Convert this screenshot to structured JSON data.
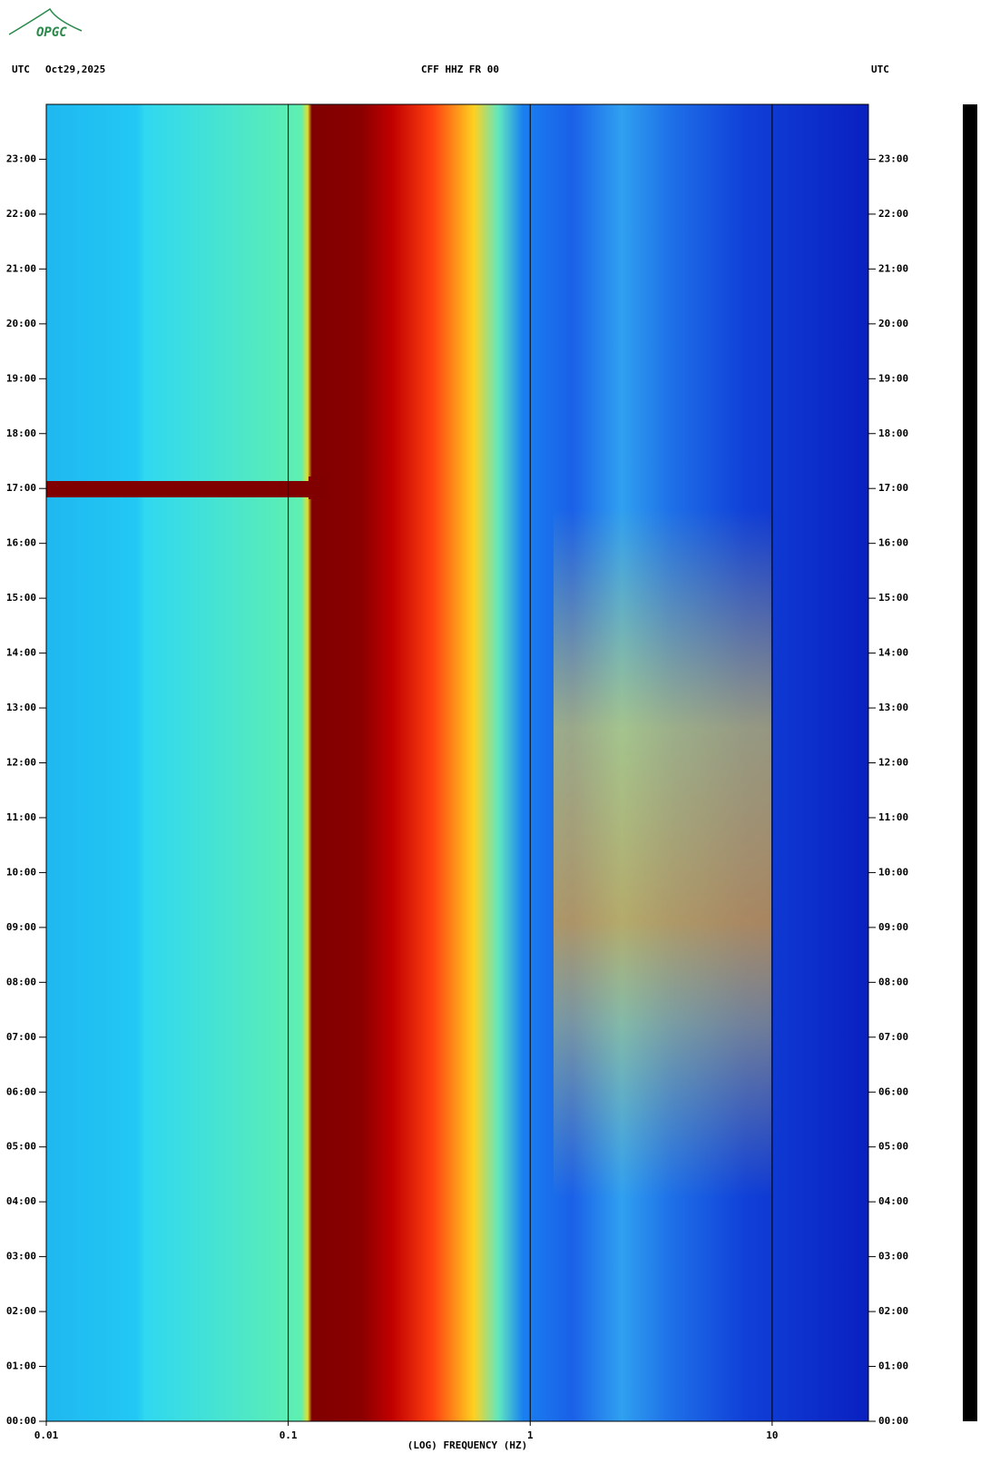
{
  "logo": "OPGC",
  "chart_data": {
    "type": "spectrogram",
    "left_label": "UTC",
    "date": "Oct29,2025",
    "title": "CFF HHZ FR 00",
    "right_label": "UTC",
    "x_label": "(LOG) FREQUENCY (HZ)",
    "xscale": "log",
    "xlim": [
      0.01,
      25
    ],
    "xticks": [
      0.01,
      0.1,
      1,
      10
    ],
    "ylim": [
      0,
      24
    ],
    "yticks": [
      {
        "value": 0,
        "label": "00:00"
      },
      {
        "value": 1,
        "label": "01:00"
      },
      {
        "value": 2,
        "label": "02:00"
      },
      {
        "value": 3,
        "label": "03:00"
      },
      {
        "value": 4,
        "label": "04:00"
      },
      {
        "value": 5,
        "label": "05:00"
      },
      {
        "value": 6,
        "label": "06:00"
      },
      {
        "value": 7,
        "label": "07:00"
      },
      {
        "value": 8,
        "label": "08:00"
      },
      {
        "value": 9,
        "label": "09:00"
      },
      {
        "value": 10,
        "label": "10:00"
      },
      {
        "value": 11,
        "label": "11:00"
      },
      {
        "value": 12,
        "label": "12:00"
      },
      {
        "value": 13,
        "label": "13:00"
      },
      {
        "value": 14,
        "label": "14:00"
      },
      {
        "value": 15,
        "label": "15:00"
      },
      {
        "value": 16,
        "label": "16:00"
      },
      {
        "value": 17,
        "label": "17:00"
      },
      {
        "value": 18,
        "label": "18:00"
      },
      {
        "value": 19,
        "label": "19:00"
      },
      {
        "value": 20,
        "label": "20:00"
      },
      {
        "value": 21,
        "label": "21:00"
      },
      {
        "value": 22,
        "label": "22:00"
      },
      {
        "value": 23,
        "label": "23:00"
      }
    ]
  }
}
